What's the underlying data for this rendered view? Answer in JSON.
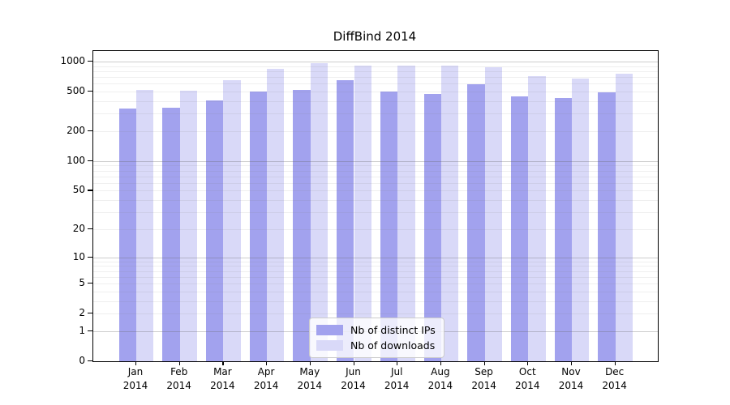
{
  "chart_data": {
    "type": "bar",
    "title": "DiffBind 2014",
    "scale": "log1p",
    "categories": [
      "Jan",
      "Feb",
      "Mar",
      "Apr",
      "May",
      "Jun",
      "Jul",
      "Aug",
      "Sep",
      "Oct",
      "Nov",
      "Dec"
    ],
    "category_year": "2014",
    "series": [
      {
        "name": "Nb of distinct IPs",
        "color": "#a2a2ee",
        "values": [
          337,
          343,
          405,
          505,
          516,
          655,
          501,
          473,
          595,
          448,
          429,
          492
        ]
      },
      {
        "name": "Nb of downloads",
        "color": "#d9d9f8",
        "values": [
          517,
          515,
          650,
          838,
          955,
          917,
          912,
          910,
          873,
          712,
          672,
          762
        ]
      }
    ],
    "y_ticks": [
      0,
      1,
      2,
      5,
      10,
      20,
      50,
      100,
      200,
      500,
      1000
    ],
    "ylim": [
      0,
      1000
    ],
    "grid": true,
    "legend_position": "bottom-center",
    "colors": {
      "major_gridline": "rgba(100,100,100,0.32)",
      "minor_gridline": "rgba(120,120,120,0.12)",
      "axis": "#000000",
      "background": "#ffffff"
    }
  }
}
